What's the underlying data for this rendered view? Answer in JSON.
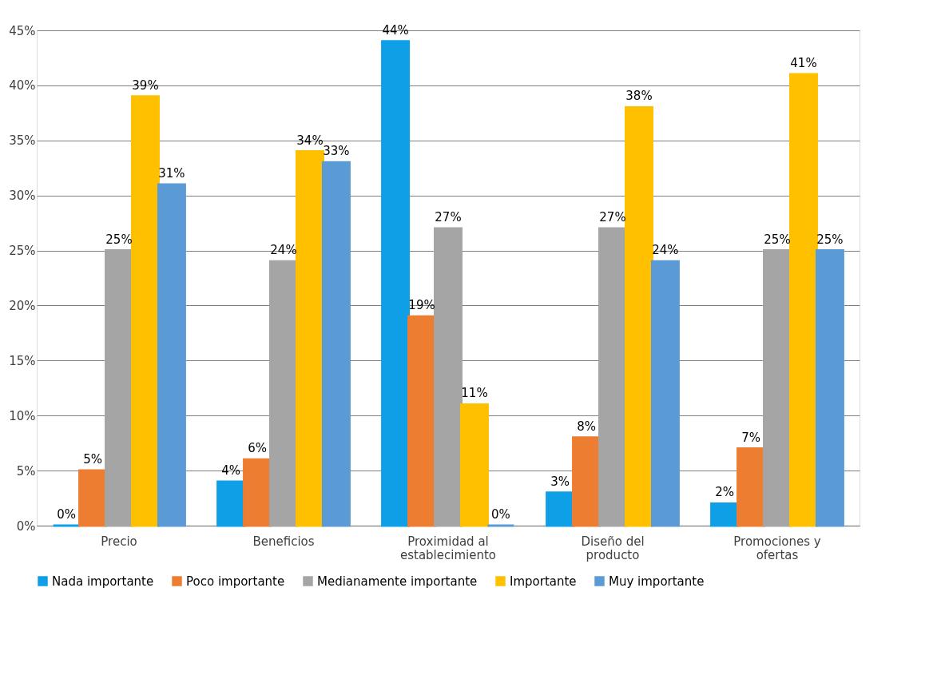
{
  "chart_data": {
    "type": "bar",
    "categories": [
      "Precio",
      "Beneficios",
      "Proximidad al\nestablecimiento",
      "Diseño del\nproducto",
      "Promociones y\nofertas"
    ],
    "series": [
      {
        "name": "Nada importante",
        "color": "#0e9fe6",
        "values": [
          0,
          4,
          44,
          3,
          2
        ],
        "value_labels": [
          "0%",
          "4%",
          "44%",
          "3%",
          "2%"
        ]
      },
      {
        "name": "Poco importante",
        "color": "#ed7d31",
        "values": [
          5,
          6,
          19,
          8,
          7
        ],
        "value_labels": [
          "5%",
          "6%",
          "19%",
          "8%",
          "7%"
        ]
      },
      {
        "name": "Medianamente importante",
        "color": "#a5a5a5",
        "values": [
          25,
          24,
          27,
          27,
          25
        ],
        "value_labels": [
          "25%",
          "24%",
          "27%",
          "27%",
          "25%"
        ]
      },
      {
        "name": "Importante",
        "color": "#ffc000",
        "values": [
          39,
          34,
          11,
          38,
          41
        ],
        "value_labels": [
          "39%",
          "34%",
          "11%",
          "38%",
          "41%"
        ]
      },
      {
        "name": "Muy importante",
        "color": "#5b9bd5",
        "values": [
          31,
          33,
          0,
          24,
          25
        ],
        "value_labels": [
          "31%",
          "33%",
          "0%",
          "24%",
          "25%"
        ]
      }
    ],
    "ylim": [
      0,
      45
    ],
    "yticks": [
      {
        "value": 0,
        "label": "0%"
      },
      {
        "value": 5,
        "label": "5%"
      },
      {
        "value": 10,
        "label": "10%"
      },
      {
        "value": 15,
        "label": "15%"
      },
      {
        "value": 20,
        "label": "20%"
      },
      {
        "value": 25,
        "label": "25%"
      },
      {
        "value": 30,
        "label": "30%"
      },
      {
        "value": 35,
        "label": "35%"
      },
      {
        "value": 40,
        "label": "40%"
      },
      {
        "value": 45,
        "label": "45%"
      }
    ],
    "grid": "y",
    "legend": "bottom"
  }
}
